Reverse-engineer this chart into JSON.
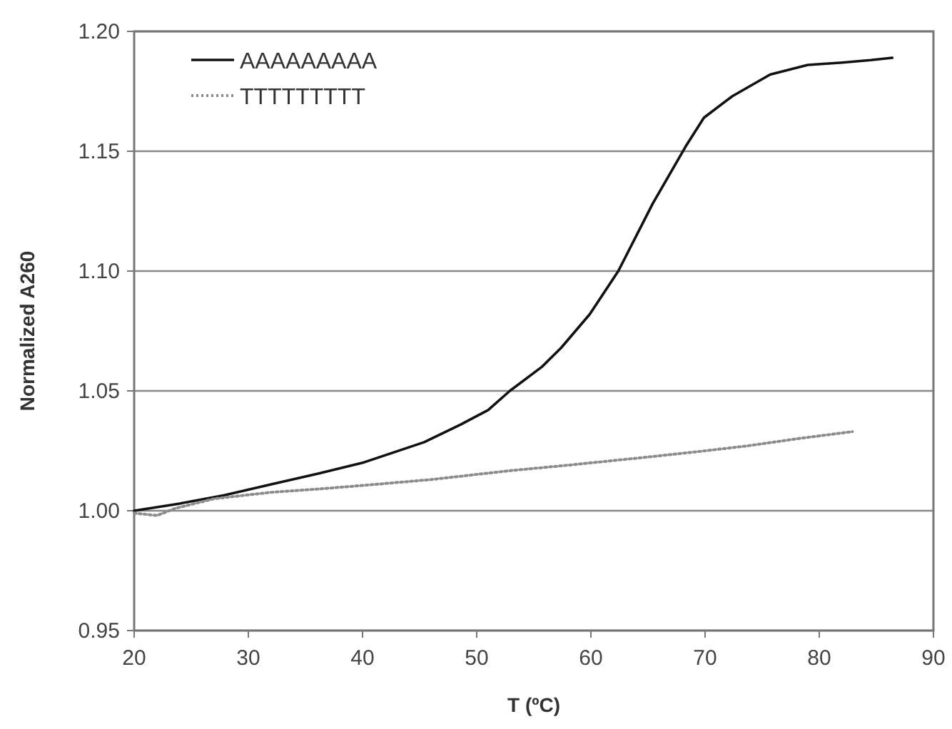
{
  "chart_data": {
    "type": "line",
    "xlabel": "T (ºC)",
    "ylabel": "Normalized A260",
    "xlim": [
      20,
      90
    ],
    "xticks": [
      20,
      30,
      40,
      50,
      60,
      70,
      80,
      90
    ],
    "ylim": [
      0.95,
      1.2
    ],
    "yticks": [
      {
        "value": 0.95,
        "label": "0.95"
      },
      {
        "value": 1,
        "label": "1.00"
      },
      {
        "value": 1.05,
        "label": "1.05"
      },
      {
        "value": 1.1,
        "label": "1.10"
      },
      {
        "value": 1.15,
        "label": "1.15"
      },
      {
        "value": 1.2,
        "label": "1.20"
      }
    ],
    "grid": "y",
    "legend": "top left",
    "marker": "none",
    "series": [
      {
        "name": "AAAAAAAAA",
        "color": "#111111",
        "line_style": "solid",
        "x": [
          20,
          24,
          27.9,
          32,
          36.1,
          40,
          45.4,
          48.6,
          51,
          52.9,
          55.7,
          57.4,
          59.9,
          62.4,
          65.4,
          68.3,
          69.9,
          72.4,
          75.7,
          79,
          82,
          84.5,
          86.4
        ],
        "values": [
          1.0,
          1.003,
          1.0065,
          1.011,
          1.0155,
          1.02,
          1.0286,
          1.036,
          1.042,
          1.05,
          1.06,
          1.068,
          1.082,
          1.1,
          1.128,
          1.152,
          1.164,
          1.173,
          1.182,
          1.186,
          1.187,
          1.188,
          1.189
        ]
      },
      {
        "name": "TTTTTTTTT",
        "color": "#8c8c8c",
        "line_style": "dotted",
        "x": [
          20,
          22,
          23.6,
          27,
          32,
          36,
          40.4,
          46,
          52.9,
          58,
          65.4,
          70,
          73.6,
          78,
          82.9
        ],
        "values": [
          0.999,
          0.998,
          1.001,
          1.005,
          1.0077,
          1.009,
          1.0107,
          1.013,
          1.0167,
          1.019,
          1.0226,
          1.025,
          1.027,
          1.03,
          1.033
        ]
      }
    ]
  }
}
